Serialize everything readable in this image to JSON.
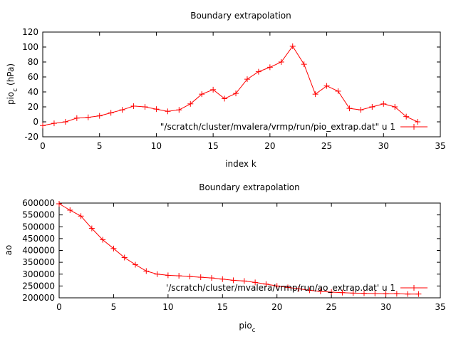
{
  "chart_data": [
    {
      "type": "line",
      "title": "Boundary extrapolation",
      "xlabel": "index k",
      "ylabel_main": "pio",
      "ylabel_sub": "c",
      "ylabel_tail": " (hPa)",
      "xlim": [
        0,
        35
      ],
      "ylim": [
        -20,
        120
      ],
      "xticks": [
        0,
        5,
        10,
        15,
        20,
        25,
        30,
        35
      ],
      "yticks": [
        -20,
        0,
        20,
        40,
        60,
        80,
        100,
        120
      ],
      "grid": false,
      "legend_position": "bottom-right",
      "color": "#ff0000",
      "series": [
        {
          "name": "\"/scratch/cluster/mvalera/vrmp/run/pio_extrap.dat\" u 1",
          "x": [
            0,
            1,
            2,
            3,
            4,
            5,
            6,
            7,
            8,
            9,
            10,
            11,
            12,
            13,
            14,
            15,
            16,
            17,
            18,
            19,
            20,
            21,
            22,
            23,
            24,
            25,
            26,
            27,
            28,
            29,
            30,
            31,
            32,
            33
          ],
          "y": [
            -5,
            -2,
            0,
            5,
            6,
            8,
            12,
            16,
            21,
            20,
            17,
            14,
            16,
            24,
            37,
            43,
            31,
            38,
            57,
            67,
            73,
            80,
            101,
            77,
            37,
            48,
            41,
            18,
            16,
            20,
            24,
            20,
            7,
            0
          ]
        }
      ]
    },
    {
      "type": "line",
      "title": "Boundary extrapolation",
      "xlabel_main": "pio",
      "xlabel_sub": "c",
      "ylabel": "ao",
      "xlim": [
        0,
        35
      ],
      "ylim": [
        200000,
        600000
      ],
      "xticks": [
        0,
        5,
        10,
        15,
        20,
        25,
        30,
        35
      ],
      "yticks": [
        200000,
        250000,
        300000,
        350000,
        400000,
        450000,
        500000,
        550000,
        600000
      ],
      "grid": false,
      "legend_position": "bottom-right",
      "color": "#ff0000",
      "series": [
        {
          "name": "'/scratch/cluster/mvalera/vrmp/run/ao_extrap.dat' u 1",
          "x": [
            0,
            1,
            2,
            3,
            4,
            5,
            6,
            7,
            8,
            9,
            10,
            11,
            12,
            13,
            14,
            15,
            16,
            17,
            18,
            19,
            20,
            21,
            22,
            23,
            24,
            25,
            26,
            27,
            28,
            29,
            30,
            31,
            32,
            33
          ],
          "y": [
            597000,
            570000,
            545000,
            493000,
            445000,
            408000,
            370000,
            340000,
            313000,
            300000,
            295000,
            293000,
            290000,
            287000,
            284000,
            279000,
            274000,
            271000,
            265000,
            258000,
            250000,
            244000,
            238000,
            232000,
            227000,
            224000,
            222000,
            220000,
            219000,
            218000,
            217000,
            217000,
            216000,
            216000
          ]
        }
      ]
    }
  ]
}
